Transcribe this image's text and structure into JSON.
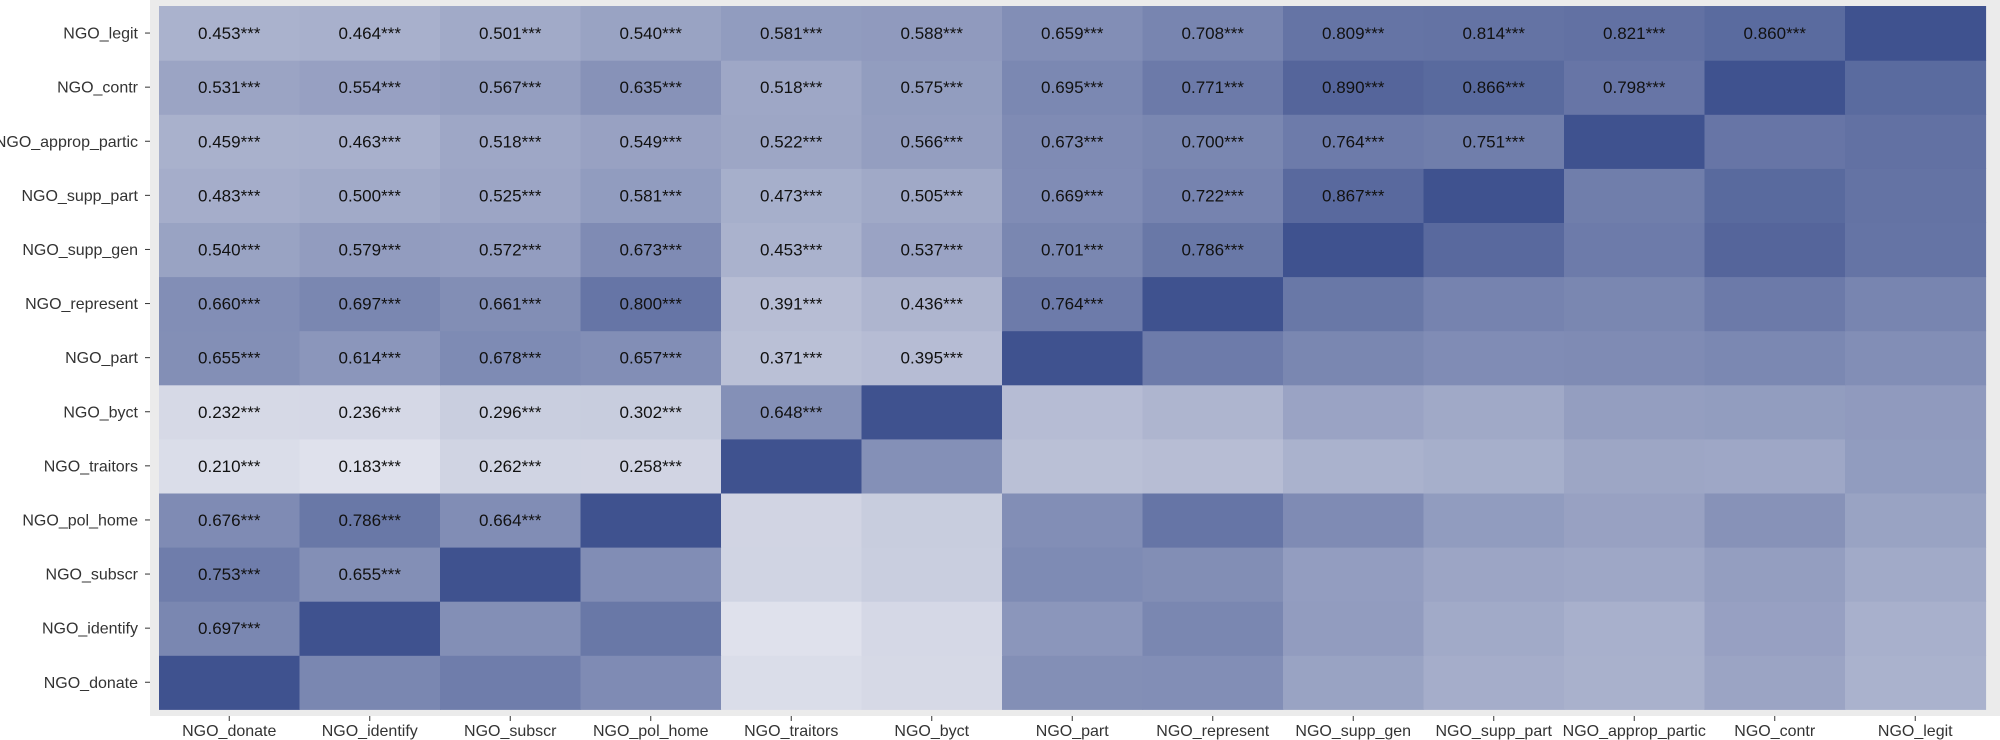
{
  "chart_data": {
    "type": "heatmap",
    "title": "",
    "xlabel": "",
    "ylabel": "",
    "x_categories": [
      "NGO_donate",
      "NGO_identify",
      "NGO_subscr",
      "NGO_pol_home",
      "NGO_traitors",
      "NGO_byct",
      "NGO_part",
      "NGO_represent",
      "NGO_supp_gen",
      "NGO_supp_part",
      "NGO_approp_partic",
      "NGO_contr",
      "NGO_legit"
    ],
    "y_categories_top_to_bottom": [
      "NGO_legit",
      "NGO_contr",
      "NGO_approp_partic",
      "NGO_supp_part",
      "NGO_supp_gen",
      "NGO_represent",
      "NGO_part",
      "NGO_byct",
      "NGO_traitors",
      "NGO_pol_home",
      "NGO_subscr",
      "NGO_identify",
      "NGO_donate"
    ],
    "significance_marker": "***",
    "values": [
      [
        1.0,
        0.697,
        0.753,
        0.676,
        0.21,
        0.232,
        0.655,
        0.66,
        0.54,
        0.483,
        0.459,
        0.531,
        0.453
      ],
      [
        0.697,
        1.0,
        0.655,
        0.786,
        0.183,
        0.236,
        0.614,
        0.697,
        0.579,
        0.5,
        0.463,
        0.554,
        0.464
      ],
      [
        0.753,
        0.655,
        1.0,
        0.664,
        0.262,
        0.296,
        0.678,
        0.661,
        0.572,
        0.525,
        0.518,
        0.567,
        0.501
      ],
      [
        0.676,
        0.786,
        0.664,
        1.0,
        0.258,
        0.302,
        0.657,
        0.8,
        0.673,
        0.581,
        0.549,
        0.635,
        0.54
      ],
      [
        0.21,
        0.183,
        0.262,
        0.258,
        1.0,
        0.648,
        0.371,
        0.391,
        0.453,
        0.473,
        0.522,
        0.518,
        0.581
      ],
      [
        0.232,
        0.236,
        0.296,
        0.302,
        0.648,
        1.0,
        0.395,
        0.436,
        0.537,
        0.505,
        0.566,
        0.575,
        0.588
      ],
      [
        0.655,
        0.614,
        0.678,
        0.657,
        0.371,
        0.395,
        1.0,
        0.764,
        0.701,
        0.669,
        0.673,
        0.695,
        0.659
      ],
      [
        0.66,
        0.697,
        0.661,
        0.8,
        0.391,
        0.436,
        0.764,
        1.0,
        0.786,
        0.722,
        0.7,
        0.771,
        0.708
      ],
      [
        0.54,
        0.579,
        0.572,
        0.673,
        0.453,
        0.537,
        0.701,
        0.786,
        1.0,
        0.867,
        0.764,
        0.89,
        0.809
      ],
      [
        0.483,
        0.5,
        0.525,
        0.581,
        0.473,
        0.505,
        0.669,
        0.722,
        0.867,
        1.0,
        0.751,
        0.866,
        0.814
      ],
      [
        0.459,
        0.463,
        0.518,
        0.549,
        0.522,
        0.566,
        0.673,
        0.7,
        0.764,
        0.751,
        1.0,
        0.798,
        0.821
      ],
      [
        0.531,
        0.554,
        0.567,
        0.635,
        0.518,
        0.575,
        0.695,
        0.771,
        0.89,
        0.866,
        0.798,
        1.0,
        0.86
      ],
      [
        0.453,
        0.464,
        0.501,
        0.54,
        0.581,
        0.588,
        0.659,
        0.708,
        0.809,
        0.814,
        0.821,
        0.86,
        1.0
      ]
    ],
    "labels_shown": "lower triangle (column index < row index, counted from the bottom)",
    "color_scale": {
      "low": "#e0e2ec",
      "high": "#3f528f"
    },
    "grid": false,
    "legend": "none",
    "panel_background": "#ebebeb"
  }
}
